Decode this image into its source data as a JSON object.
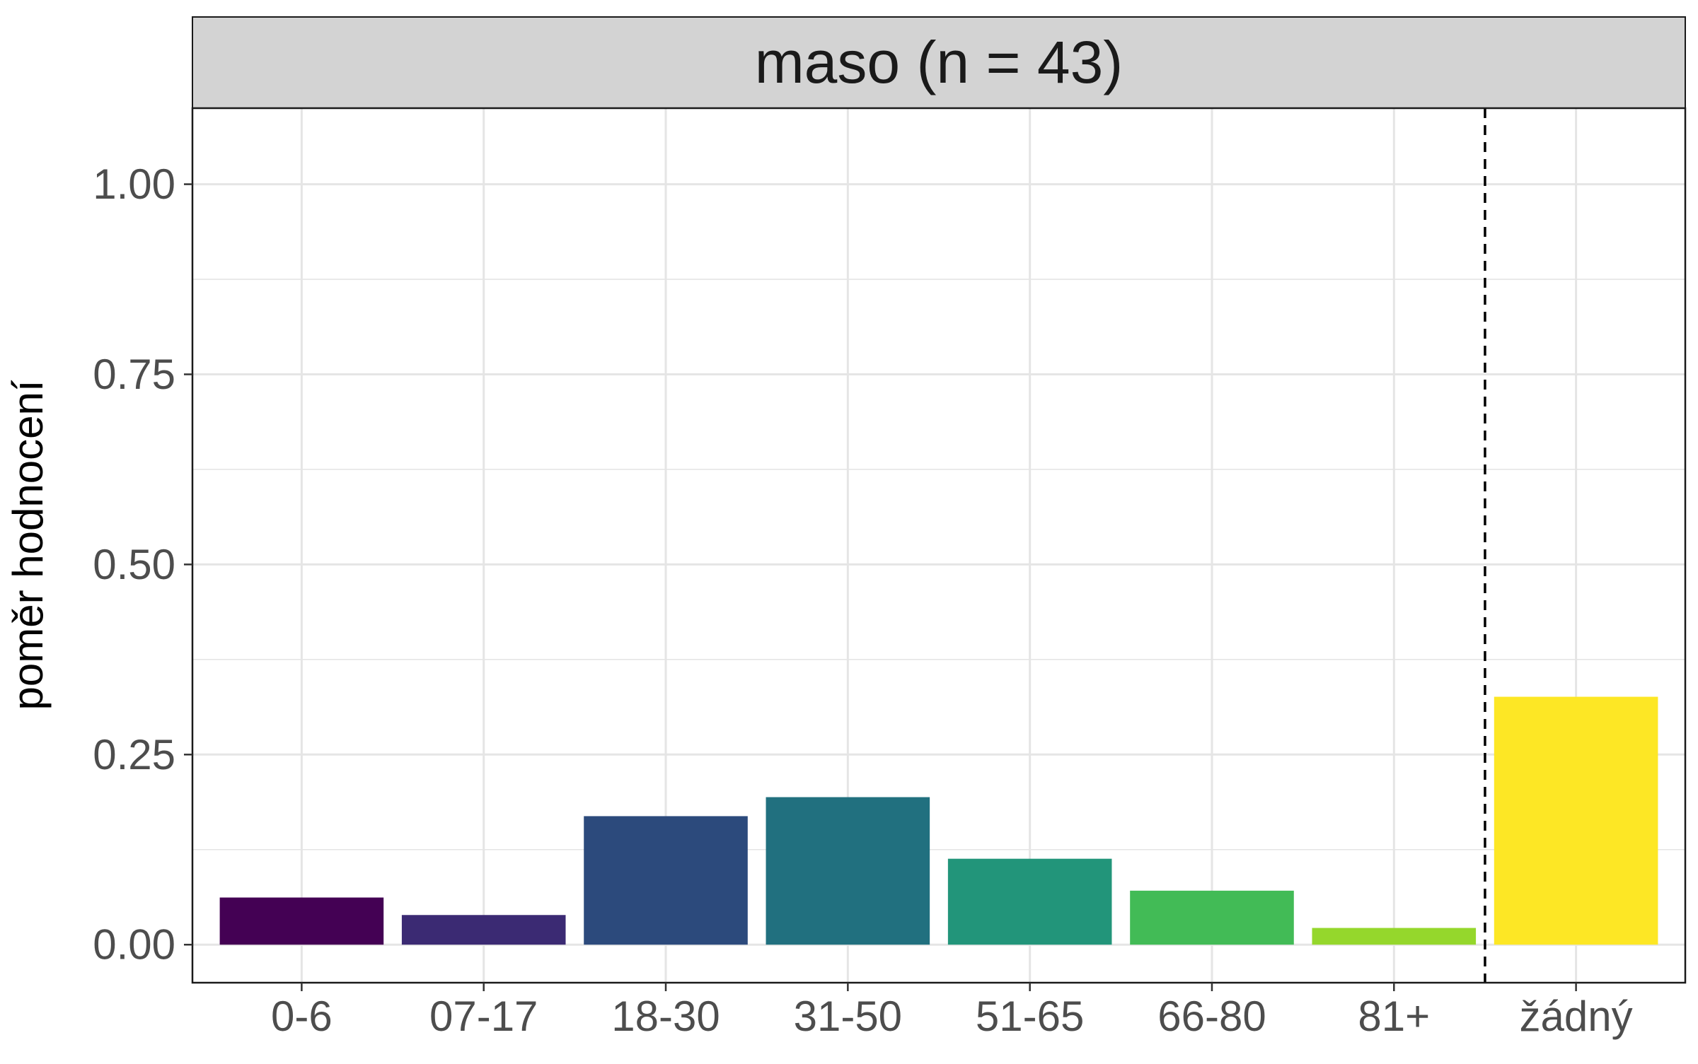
{
  "chart_data": {
    "type": "bar",
    "facet_title": "maso (n = 43)",
    "ylabel": "poměr hodnocení",
    "xlabel": "",
    "categories": [
      "0-6",
      "07-17",
      "18-30",
      "31-50",
      "51-65",
      "66-80",
      "81+",
      "žádný"
    ],
    "values": [
      0.062,
      0.039,
      0.169,
      0.194,
      0.113,
      0.071,
      0.022,
      0.326
    ],
    "colors": [
      "#440154",
      "#3B2A73",
      "#2C4A7C",
      "#21707F",
      "#22957A",
      "#42BB56",
      "#95D72C",
      "#FDE725"
    ],
    "ylim": [
      -0.05,
      1.1
    ],
    "yticks": [
      0,
      0.25,
      0.5,
      0.75,
      1.0
    ],
    "ytick_labels": [
      "0.00",
      "0.25",
      "0.50",
      "0.75",
      "1.00"
    ],
    "reference_line": {
      "between": [
        "81+",
        "žádný"
      ],
      "style": "dashed",
      "color": "#000000"
    },
    "grid": true,
    "theme_colors": {
      "strip_fill": "#D3D3D3",
      "panel_border": "#1a1a1a",
      "grid_major": "#E5E5E5",
      "grid_minor": "#F2F2F2",
      "tick_text": "#4D4D4D"
    }
  }
}
